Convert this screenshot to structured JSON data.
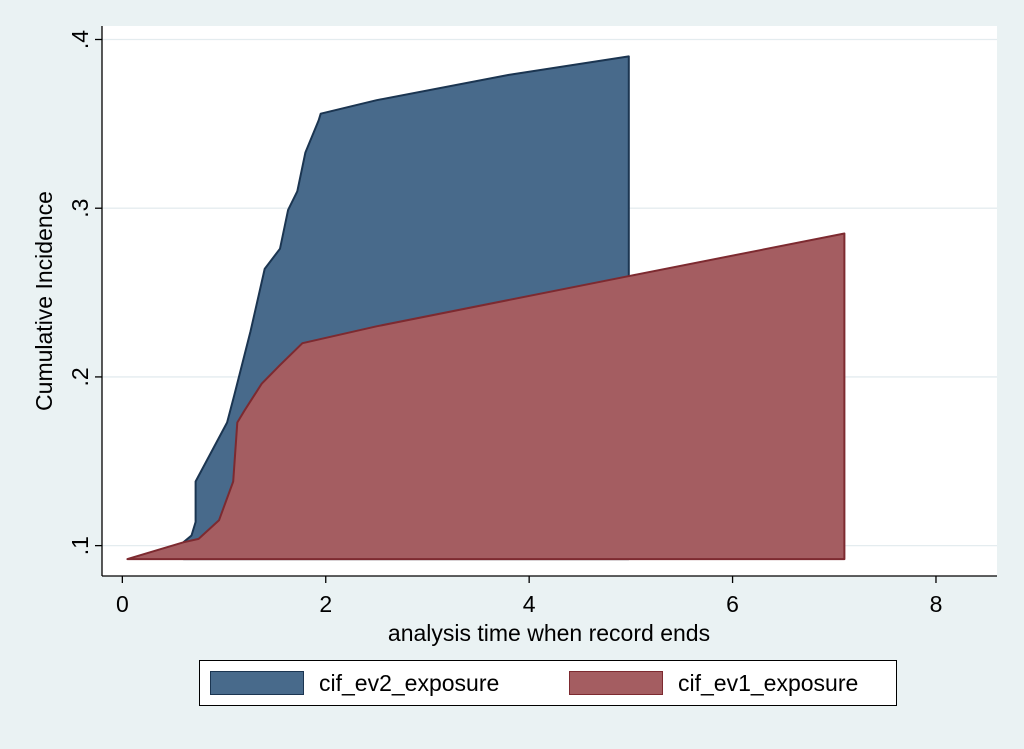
{
  "chart_data": {
    "type": "area",
    "title": "",
    "xlabel": "analysis time when record ends",
    "ylabel": "Cumulative Incidence",
    "xlim": [
      -0.2,
      8.6
    ],
    "ylim": [
      0.082,
      0.408
    ],
    "baseline": 0.092,
    "x_ticks": [
      {
        "value": 0,
        "label": "0"
      },
      {
        "value": 2,
        "label": "2"
      },
      {
        "value": 4,
        "label": "4"
      },
      {
        "value": 6,
        "label": "6"
      },
      {
        "value": 8,
        "label": "8"
      }
    ],
    "y_ticks": [
      {
        "value": 0.1,
        "label": ".1"
      },
      {
        "value": 0.2,
        "label": ".2"
      },
      {
        "value": 0.3,
        "label": ".3"
      },
      {
        "value": 0.4,
        "label": ".4"
      }
    ],
    "grid": true,
    "legend_position": "bottom",
    "series": [
      {
        "name": "cif_ev2_exposure",
        "color": "#486a8b",
        "stroke": "#1b3551",
        "points": [
          [
            0.6,
            0.102
          ],
          [
            0.68,
            0.106
          ],
          [
            0.72,
            0.114
          ],
          [
            0.72,
            0.138
          ],
          [
            1.03,
            0.173
          ],
          [
            1.1,
            0.189
          ],
          [
            1.26,
            0.227
          ],
          [
            1.4,
            0.264
          ],
          [
            1.55,
            0.276
          ],
          [
            1.63,
            0.299
          ],
          [
            1.72,
            0.31
          ],
          [
            1.8,
            0.333
          ],
          [
            1.93,
            0.352
          ],
          [
            1.95,
            0.356
          ],
          [
            2.5,
            0.364
          ],
          [
            3.8,
            0.379
          ],
          [
            4.98,
            0.39
          ]
        ]
      },
      {
        "name": "cif_ev1_exposure",
        "color": "#a45d61",
        "stroke": "#7d2a30",
        "points": [
          [
            0.05,
            0.092
          ],
          [
            0.6,
            0.102
          ],
          [
            0.75,
            0.104
          ],
          [
            0.95,
            0.115
          ],
          [
            1.09,
            0.138
          ],
          [
            1.13,
            0.173
          ],
          [
            1.2,
            0.18
          ],
          [
            1.37,
            0.196
          ],
          [
            1.55,
            0.207
          ],
          [
            1.77,
            0.22
          ],
          [
            2.5,
            0.23
          ],
          [
            5.0,
            0.26
          ],
          [
            7.1,
            0.285
          ]
        ]
      }
    ]
  }
}
